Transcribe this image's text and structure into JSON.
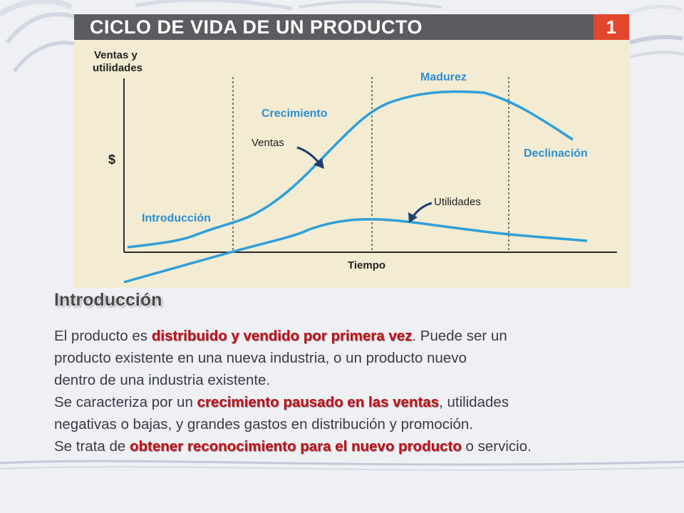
{
  "figure": {
    "title": "CICLO DE VIDA DE UN PRODUCTO",
    "number": "1",
    "y_axis_label_line1": "Ventas y",
    "y_axis_label_line2": "utilidades",
    "y_symbol": "$",
    "x_axis_label": "Tiempo",
    "stages": {
      "introduccion": "Introducción",
      "crecimiento": "Crecimiento",
      "madurez": "Madurez",
      "declinacion": "Declinación"
    },
    "curve_labels": {
      "ventas": "Ventas",
      "utilidades": "Utilidades"
    },
    "colors": {
      "panel_background": "#f3ecd3",
      "header_background": "#5a5c60",
      "number_box": "#e2472d",
      "curve": "#2e9fd8",
      "stage_label": "#2c8fd0",
      "annotation_arrow": "#1e3f6e"
    }
  },
  "section": {
    "heading": "Introducción"
  },
  "paragraph": {
    "line1_pre": "El producto es ",
    "line1_highlight": "distribuido y vendido por primera vez",
    "line1_post": ". Puede ser un",
    "line2": "producto existente en una nueva industria,  o un producto nuevo",
    "line3": "dentro de una industria existente.",
    "line4_pre": "Se caracteriza por un ",
    "line4_highlight": "crecimiento pausado en las ventas",
    "line4_post": ", utilidades",
    "line5": "negativas o bajas, y grandes gastos en distribución y promoción.",
    "line6_pre": "Se trata de ",
    "line6_highlight": "obtener reconocimiento para el nuevo producto",
    "line6_post": " o servicio."
  }
}
